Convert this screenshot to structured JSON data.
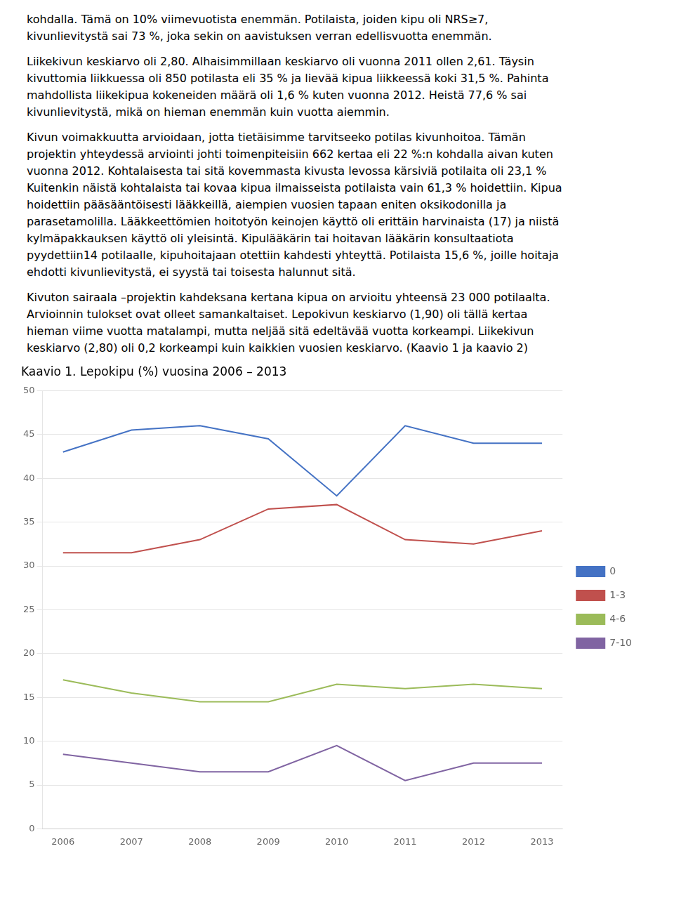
{
  "chart_data": {
    "type": "line",
    "title": "Kaavio 1. Lepokipu (%) vuosina 2006 – 2013",
    "annotations": [
      [
        "kohdalla. Tämä on 10% viimevuotista enemmän. Potilaista, joiden kipu oli NRS≥7,",
        "kivunlievitystä sai 73 %, joka sekin on aavistuksen verran edellisvuotta enemmän."
      ],
      [
        "Liikekivun keskiarvo oli 2,80. Alhaisimmillaan keskiarvo oli vuonna 2011 ollen 2,61. Täysin",
        "kivuttomia liikkuessa oli 850 potilasta eli 35 % ja lievää kipua liikkeessä koki 31,5 %. Pahinta",
        "mahdollista liikekipua kokeneiden määrä oli 1,6 % kuten vuonna 2012.  Heistä 77,6 % sai",
        "kivunlievitystä, mikä on hieman enemmän kuin vuotta aiemmin."
      ],
      [
        "Kivun voimakkuutta arvioidaan, jotta tietäisimme tarvitseeko potilas kivunhoitoa. Tämän",
        "projektin yhteydessä arviointi johti toimenpiteisiin 662 kertaa eli 22 %:n kohdalla aivan kuten",
        "vuonna 2012. Kohtalaisesta tai sitä kovemmasta kivusta levossa kärsiviä potilaita oli 23,1 %",
        "Kuitenkin näistä kohtalaista tai kovaa kipua ilmaisseista potilaista vain 61,3 % hoidettiin. Kipua",
        "hoidettiin pääsääntöisesti lääkkeillä, aiempien vuosien tapaan eniten oksikodonilla ja",
        "parasetamolilla. Lääkkeettömien hoitotyön keinojen käyttö oli erittäin harvinaista (17) ja niistä",
        "kylmäpakkauksen käyttö oli yleisintä. Kipulääkärin tai hoitavan lääkärin konsultaatiota",
        "pyydettiin14 potilaalle, kipuhoitajaan otettiin kahdesti yhteyttä. Potilaista 15,6 %, joille hoitaja",
        "ehdotti kivunlievitystä, ei syystä tai toisesta halunnut sitä."
      ],
      [
        "Kivuton sairaala –projektin kahdeksana kertana kipua on arvioitu yhteensä 23 000 potilaalta.",
        "Arvioinnin tulokset ovat olleet samankaltaiset. Lepokivun keskiarvo (1,90) oli tällä kertaa",
        "hieman viime vuotta matalampi, mutta neljää sitä edeltävää vuotta korkeampi. Liikekivun",
        "keskiarvo (2,80) oli 0,2 korkeampi kuin kaikkien vuosien keskiarvo.  (Kaavio 1 ja kaavio 2)"
      ]
    ],
    "x": [
      2006,
      2007,
      2008,
      2009,
      2010,
      2011,
      2012,
      2013
    ],
    "xlim": [
      2005.7,
      2013.3
    ],
    "xticks": [
      2006,
      2007,
      2008,
      2009,
      2010,
      2011,
      2012,
      2013
    ],
    "series": [
      {
        "name": "0",
        "color": "#4472C4",
        "values": [
          43.0,
          45.5,
          46.0,
          44.5,
          38.0,
          46.0,
          44.0,
          44.0
        ]
      },
      {
        "name": "1-3",
        "color": "#C0504D",
        "values": [
          31.5,
          31.5,
          33.0,
          36.5,
          37.0,
          33.0,
          32.5,
          34.0
        ]
      },
      {
        "name": "4-6",
        "color": "#9BBB59",
        "values": [
          17.0,
          15.5,
          14.5,
          14.5,
          16.5,
          16.0,
          16.5,
          16.0
        ]
      },
      {
        "name": "7-10",
        "color": "#8064A2",
        "values": [
          8.5,
          7.5,
          6.5,
          6.5,
          9.5,
          5.5,
          7.5,
          7.5
        ]
      }
    ],
    "ylim": [
      0,
      50
    ],
    "yticks": [
      0,
      5,
      10,
      15,
      20,
      25,
      30,
      35,
      40,
      45,
      50
    ],
    "grid": "y",
    "legend": "right",
    "marker": "none"
  }
}
